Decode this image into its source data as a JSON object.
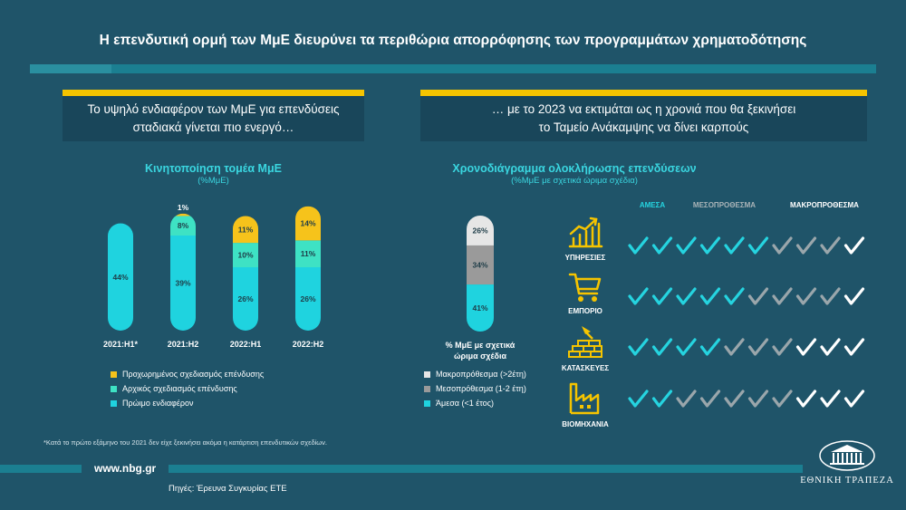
{
  "title": "Η επενδυτική ορμή των ΜμΕ διευρύνει τα περιθώρια απορρόφησης των προγραμμάτων χρηματοδότησης",
  "left_panel": {
    "line1": "Το υψηλό ενδιαφέρον των ΜμΕ για επενδύσεις",
    "line2": "σταδιακά γίνεται πιο ενεργό…"
  },
  "right_panel": {
    "line1": "… με το 2023 να εκτιμάται ως η χρονιά που θα ξεκινήσει",
    "line2": "το Ταμείο Ανάκαμψης να δίνει καρπούς"
  },
  "colors": {
    "early": "#1fd3df",
    "initial": "#3ee2c4",
    "advanced": "#f6c31b",
    "short": "#1fd3df",
    "medium": "#9a9a9a",
    "long": "#e6e6e6",
    "check_cyan": "#25d4e0",
    "check_grey": "#9aa6ab",
    "check_white": "#ffffff",
    "yellow": "#f5c400"
  },
  "chart_data": [
    {
      "type": "bar",
      "stacked": true,
      "title": "Κινητοποίηση τομέα ΜμΕ",
      "subtitle": "(%ΜμΕ)",
      "categories": [
        "2021:H1*",
        "2021:H2",
        "2022:H1",
        "2022:H2"
      ],
      "series": [
        {
          "name": "Πρώιμο ενδιαφέρον",
          "values": [
            44,
            39,
            26,
            26
          ],
          "labels": [
            "44%",
            "39%",
            "26%",
            "26%"
          ]
        },
        {
          "name": "Αρχικός σχεδιασμός επένδυσης",
          "values": [
            0,
            8,
            10,
            11
          ],
          "labels": [
            "",
            "8%",
            "10%",
            "11%"
          ]
        },
        {
          "name": "Προχωρημένος σχεδιασμός επένδυσης",
          "values": [
            0,
            1,
            11,
            14
          ],
          "labels": [
            "",
            "1%",
            "11%",
            "14%"
          ]
        }
      ],
      "ylim": [
        0,
        52
      ],
      "legend_position": "bottom"
    },
    {
      "type": "bar",
      "stacked": true,
      "title": "Χρονοδιάγραμμα ολοκλήρωσης επενδύσεων",
      "subtitle": "(%ΜμΕ με σχετικά ώριμα σχέδια)",
      "categories": [
        "% ΜμΕ με σχετικά ώριμα σχέδια"
      ],
      "series": [
        {
          "name": "Άμεσα (<1 έτος)",
          "values": [
            41
          ],
          "labels": [
            "41%"
          ]
        },
        {
          "name": "Μεσοπρόθεσμα (1-2 έτη)",
          "values": [
            34
          ],
          "labels": [
            "34%"
          ]
        },
        {
          "name": "Μακροπρόθεσμα (>2έτη)",
          "values": [
            26
          ],
          "labels": [
            "26%"
          ]
        }
      ],
      "legend_position": "bottom"
    }
  ],
  "bar_label_line1": "% ΜμΕ με σχετικά",
  "bar_label_line2": "ώριμα σχέδια",
  "legend_left": [
    "Προχωρημένος σχεδιασμός επένδυσης",
    "Αρχικός σχεδιασμός επένδυσης",
    "Πρώιμο ενδιαφέρον"
  ],
  "legend_right": [
    "Μακροπρόθεσμα (>2έτη)",
    "Μεσοπρόθεσμα (1-2 έτη)",
    "Άμεσα (<1 έτος)"
  ],
  "grid_columns": [
    "ΑΜΕΣΑ",
    "ΜΕΣΟΠΡΟΘΕΣΜΑ",
    "ΜΑΚΡΟΠΡΟΘΕΣΜΑ"
  ],
  "sectors": [
    {
      "name": "ΥΠΗΡΕΣΙΕΣ",
      "icon": "growth-chart-icon",
      "checks": [
        "cyan",
        "cyan",
        "cyan",
        "cyan",
        "cyan",
        "cyan",
        "grey",
        "grey",
        "grey",
        "white"
      ]
    },
    {
      "name": "ΕΜΠΟΡΙΟ",
      "icon": "shopping-cart-icon",
      "checks": [
        "cyan",
        "cyan",
        "cyan",
        "cyan",
        "cyan",
        "grey",
        "grey",
        "grey",
        "grey",
        "white"
      ]
    },
    {
      "name": "ΚΑΤΑΣΚΕΥΕΣ",
      "icon": "brick-wall-icon",
      "checks": [
        "cyan",
        "cyan",
        "cyan",
        "cyan",
        "grey",
        "grey",
        "grey",
        "white",
        "white",
        "white"
      ]
    },
    {
      "name": "ΒΙΟΜΗΧΑΝΙΑ",
      "icon": "factory-icon",
      "checks": [
        "cyan",
        "cyan",
        "grey",
        "grey",
        "grey",
        "grey",
        "grey",
        "white",
        "white",
        "white"
      ]
    }
  ],
  "footnote": "*Κατά το πρώτο εξάμηνο του 2021 δεν είχε ξεκινήσει ακόμα η κατάρτιση επενδυτικών σχεδίων.",
  "footer": {
    "url": "www.nbg.gr",
    "source": "Πηγές: Έρευνα Συγκυρίας ΕΤΕ"
  },
  "logo_text": "ΕΘΝΙΚΗ ΤΡΑΠΕΖΑ"
}
